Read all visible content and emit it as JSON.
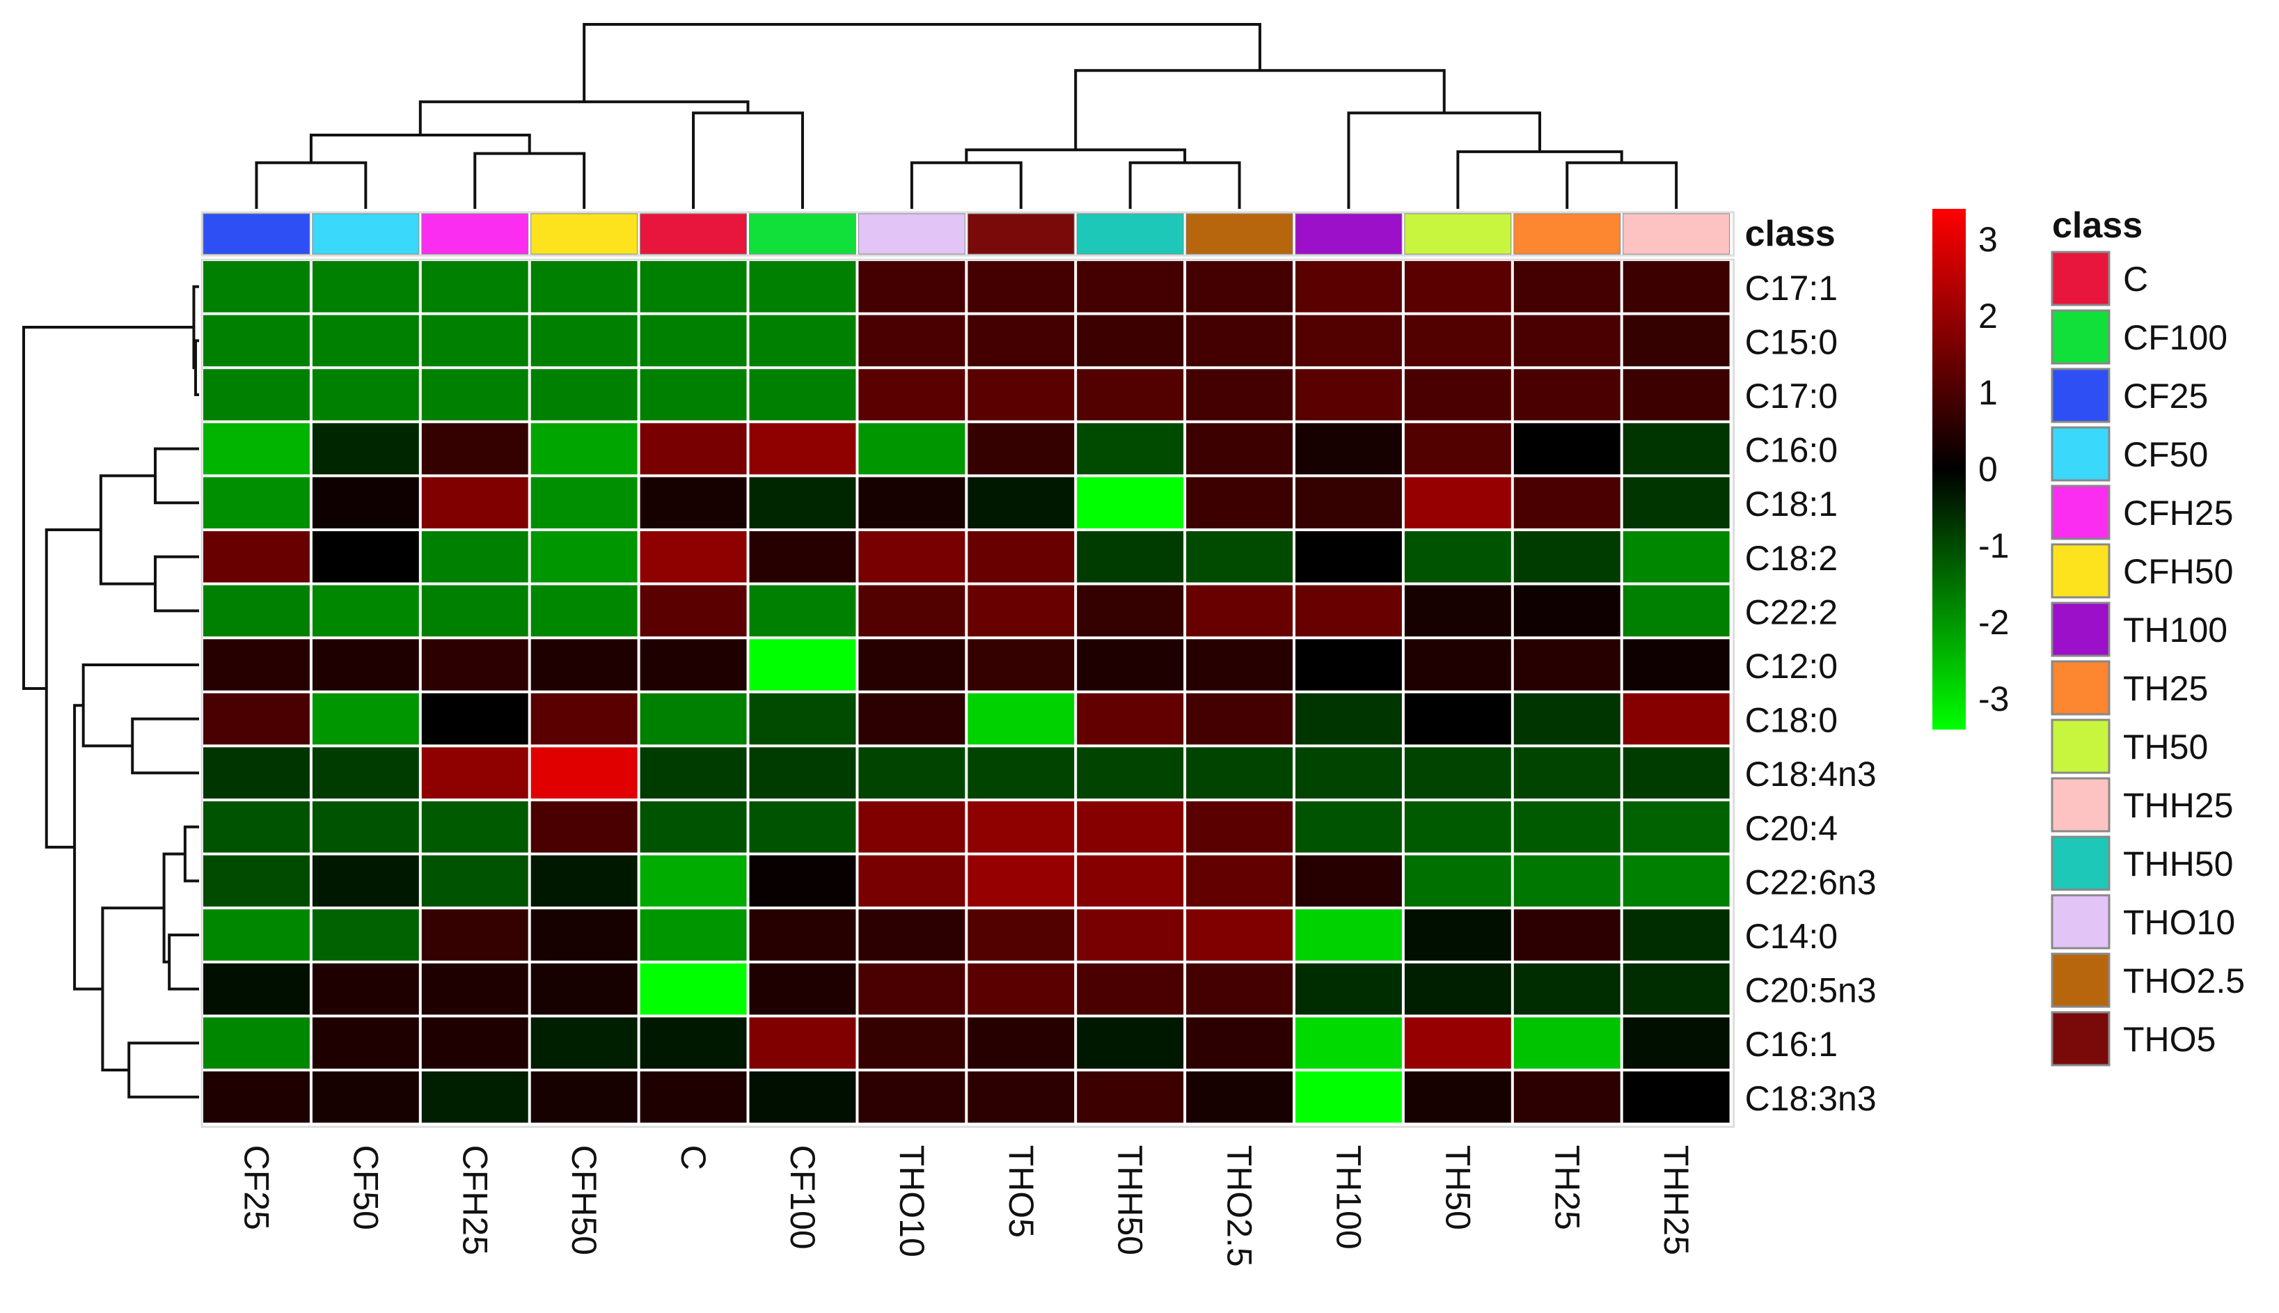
{
  "chart_data": {
    "type": "heatmap",
    "columns": [
      "CF25",
      "CF50",
      "CFH25",
      "CFH50",
      "C",
      "CF100",
      "THO10",
      "THO5",
      "THH50",
      "THO2.5",
      "TH100",
      "TH50",
      "TH25",
      "THH25"
    ],
    "rows": [
      "C17:1",
      "C15:0",
      "C17:0",
      "C16:0",
      "C18:1",
      "C18:2",
      "C22:2",
      "C12:0",
      "C18:0",
      "C18:4n3",
      "C20:4",
      "C22:6n3",
      "C14:0",
      "C20:5n3",
      "C16:1",
      "C18:3n3"
    ],
    "values": [
      [
        -1.7,
        -1.7,
        -1.7,
        -1.7,
        -1.7,
        -1.7,
        0.9,
        0.9,
        0.9,
        0.9,
        1.2,
        1.2,
        0.9,
        0.8
      ],
      [
        -1.7,
        -1.7,
        -1.7,
        -1.7,
        -1.7,
        -1.7,
        1.0,
        0.9,
        0.8,
        0.9,
        1.1,
        1.1,
        1.0,
        0.7
      ],
      [
        -1.7,
        -1.7,
        -1.7,
        -1.7,
        -1.7,
        -1.7,
        1.2,
        1.2,
        1.1,
        0.9,
        1.2,
        1.0,
        1.0,
        0.8
      ],
      [
        -2.4,
        -0.5,
        0.7,
        -2.2,
        1.6,
        1.9,
        -2.0,
        0.7,
        -1.0,
        0.8,
        0.3,
        1.1,
        0.0,
        -0.7
      ],
      [
        -1.9,
        0.2,
        1.7,
        -1.9,
        0.3,
        -0.5,
        0.3,
        -0.3,
        -3.5,
        0.8,
        0.7,
        2.0,
        1.0,
        -0.7
      ],
      [
        1.4,
        0.0,
        -1.7,
        -2.0,
        1.9,
        0.5,
        1.6,
        1.4,
        -0.8,
        -1.0,
        0.0,
        -1.1,
        -0.8,
        -1.8
      ],
      [
        -1.7,
        -1.8,
        -1.7,
        -1.8,
        1.2,
        -1.7,
        1.1,
        1.4,
        0.7,
        1.4,
        1.4,
        0.3,
        0.2,
        -1.7
      ],
      [
        0.5,
        0.4,
        0.6,
        0.4,
        0.4,
        -4.0,
        0.5,
        0.7,
        0.4,
        0.5,
        0.0,
        0.4,
        0.5,
        0.2
      ],
      [
        1.0,
        -2.0,
        0.0,
        1.2,
        -1.7,
        -1.0,
        0.6,
        -2.8,
        1.3,
        0.9,
        -0.7,
        0.0,
        -0.7,
        1.8
      ],
      [
        -0.7,
        -0.8,
        1.9,
        3.0,
        -0.8,
        -0.8,
        -0.9,
        -0.9,
        -0.9,
        -0.9,
        -0.9,
        -0.9,
        -0.9,
        -0.8
      ],
      [
        -1.1,
        -1.1,
        -1.2,
        1.0,
        -1.1,
        -1.1,
        1.7,
        1.9,
        1.8,
        1.2,
        -1.1,
        -1.2,
        -1.2,
        -1.3
      ],
      [
        -1.0,
        -0.3,
        -1.1,
        -0.3,
        -2.3,
        0.1,
        1.6,
        2.0,
        1.8,
        1.3,
        0.5,
        -1.5,
        -1.6,
        -1.7
      ],
      [
        -1.8,
        -1.3,
        0.7,
        0.3,
        -2.0,
        0.5,
        0.6,
        1.1,
        1.6,
        1.7,
        -2.8,
        -0.2,
        0.6,
        -0.6
      ],
      [
        -0.2,
        0.4,
        0.4,
        0.3,
        -3.8,
        0.4,
        1.0,
        1.2,
        1.0,
        0.9,
        -0.6,
        -0.4,
        -0.6,
        -0.6
      ],
      [
        -1.8,
        0.4,
        0.4,
        -0.4,
        -0.3,
        1.7,
        0.7,
        0.5,
        -0.3,
        0.6,
        -2.9,
        2.0,
        -2.6,
        -0.2
      ],
      [
        0.4,
        0.3,
        -0.4,
        0.3,
        0.4,
        -0.2,
        0.6,
        0.6,
        0.8,
        0.3,
        -4.0,
        0.3,
        0.6,
        0.0
      ]
    ],
    "colorbar": {
      "ticks": [
        "3",
        "2",
        "1",
        "0",
        "-1",
        "-2",
        "-3"
      ],
      "tick_values": [
        3,
        2,
        1,
        0,
        -1,
        -2,
        -3
      ],
      "range": [
        -3.4,
        3.4
      ],
      "colors": {
        "low": "#00ff00",
        "mid": "#000000",
        "high": "#ff0000"
      }
    },
    "class_bar_label": "class",
    "legend": {
      "title": "class",
      "placement": "right",
      "items": [
        {
          "label": "C",
          "color": "#e8163c"
        },
        {
          "label": "CF100",
          "color": "#11e03a"
        },
        {
          "label": "CF25",
          "color": "#2d4ff3"
        },
        {
          "label": "CF50",
          "color": "#3ad8fb"
        },
        {
          "label": "CFH25",
          "color": "#fb2df0"
        },
        {
          "label": "CFH50",
          "color": "#fde31e"
        },
        {
          "label": "TH100",
          "color": "#9b10c8"
        },
        {
          "label": "TH25",
          "color": "#fd8630"
        },
        {
          "label": "TH50",
          "color": "#c8f53d"
        },
        {
          "label": "THH25",
          "color": "#fdc3c2"
        },
        {
          "label": "THH50",
          "color": "#1ec8b8"
        },
        {
          "label": "THO10",
          "color": "#e2c4f7"
        },
        {
          "label": "THO2.5",
          "color": "#b8660d"
        },
        {
          "label": "THO5",
          "color": "#7a0a0a"
        }
      ]
    },
    "column_class_colors": [
      "#2d4ff3",
      "#3ad8fb",
      "#fb2df0",
      "#fde31e",
      "#e8163c",
      "#11e03a",
      "#e2c4f7",
      "#7a0a0a",
      "#1ec8b8",
      "#b8660d",
      "#9b10c8",
      "#c8f53d",
      "#fd8630",
      "#fdc3c2"
    ],
    "column_dendrogram": [
      {
        "a": [
          0
        ],
        "b": [
          1
        ],
        "h": 0.25
      },
      {
        "a": [
          2
        ],
        "b": [
          3
        ],
        "h": 0.3
      },
      {
        "a": [
          0,
          1
        ],
        "b": [
          2,
          3
        ],
        "h": 0.4
      },
      {
        "a": [
          4
        ],
        "b": [
          5
        ],
        "h": 0.52
      },
      {
        "a": [
          0,
          1,
          2,
          3
        ],
        "b": [
          4,
          5
        ],
        "h": 0.58
      },
      {
        "a": [
          6
        ],
        "b": [
          7
        ],
        "h": 0.25
      },
      {
        "a": [
          8
        ],
        "b": [
          9
        ],
        "h": 0.25
      },
      {
        "a": [
          6,
          7
        ],
        "b": [
          8,
          9
        ],
        "h": 0.32
      },
      {
        "a": [
          12
        ],
        "b": [
          13
        ],
        "h": 0.25
      },
      {
        "a": [
          11
        ],
        "b": [
          12,
          13
        ],
        "h": 0.31
      },
      {
        "a": [
          10
        ],
        "b": [
          11,
          12,
          13
        ],
        "h": 0.52
      },
      {
        "a": [
          6,
          7,
          8,
          9
        ],
        "b": [
          10,
          11,
          12,
          13
        ],
        "h": 0.75
      },
      {
        "a": [
          0,
          1,
          2,
          3,
          4,
          5
        ],
        "b": [
          6,
          7,
          8,
          9,
          10,
          11,
          12,
          13
        ],
        "h": 1.0
      }
    ],
    "row_dendrogram": [
      {
        "a": [
          1
        ],
        "b": [
          2
        ],
        "h": 0.02
      },
      {
        "a": [
          0
        ],
        "b": [
          1,
          2
        ],
        "h": 0.03
      },
      {
        "a": [
          3
        ],
        "b": [
          4
        ],
        "h": 0.25
      },
      {
        "a": [
          5
        ],
        "b": [
          6
        ],
        "h": 0.25
      },
      {
        "a": [
          3,
          4
        ],
        "b": [
          5,
          6
        ],
        "h": 0.56
      },
      {
        "a": [
          8
        ],
        "b": [
          9
        ],
        "h": 0.38
      },
      {
        "a": [
          7
        ],
        "b": [
          8,
          9
        ],
        "h": 0.66
      },
      {
        "a": [
          10
        ],
        "b": [
          11
        ],
        "h": 0.08
      },
      {
        "a": [
          12
        ],
        "b": [
          13
        ],
        "h": 0.17
      },
      {
        "a": [
          10,
          11
        ],
        "b": [
          12,
          13
        ],
        "h": 0.2
      },
      {
        "a": [
          14
        ],
        "b": [
          15
        ],
        "h": 0.4
      },
      {
        "a": [
          10,
          11,
          12,
          13
        ],
        "b": [
          14,
          15
        ],
        "h": 0.55
      },
      {
        "a": [
          7,
          8,
          9
        ],
        "b": [
          10,
          11,
          12,
          13,
          14,
          15
        ],
        "h": 0.71
      },
      {
        "a": [
          3,
          4,
          5,
          6
        ],
        "b": [
          7,
          8,
          9,
          10,
          11,
          12,
          13,
          14,
          15
        ],
        "h": 0.87
      },
      {
        "a": [
          0,
          1,
          2
        ],
        "b": [
          3,
          4,
          5,
          6,
          7,
          8,
          9,
          10,
          11,
          12,
          13,
          14,
          15
        ],
        "h": 1.0
      }
    ]
  }
}
